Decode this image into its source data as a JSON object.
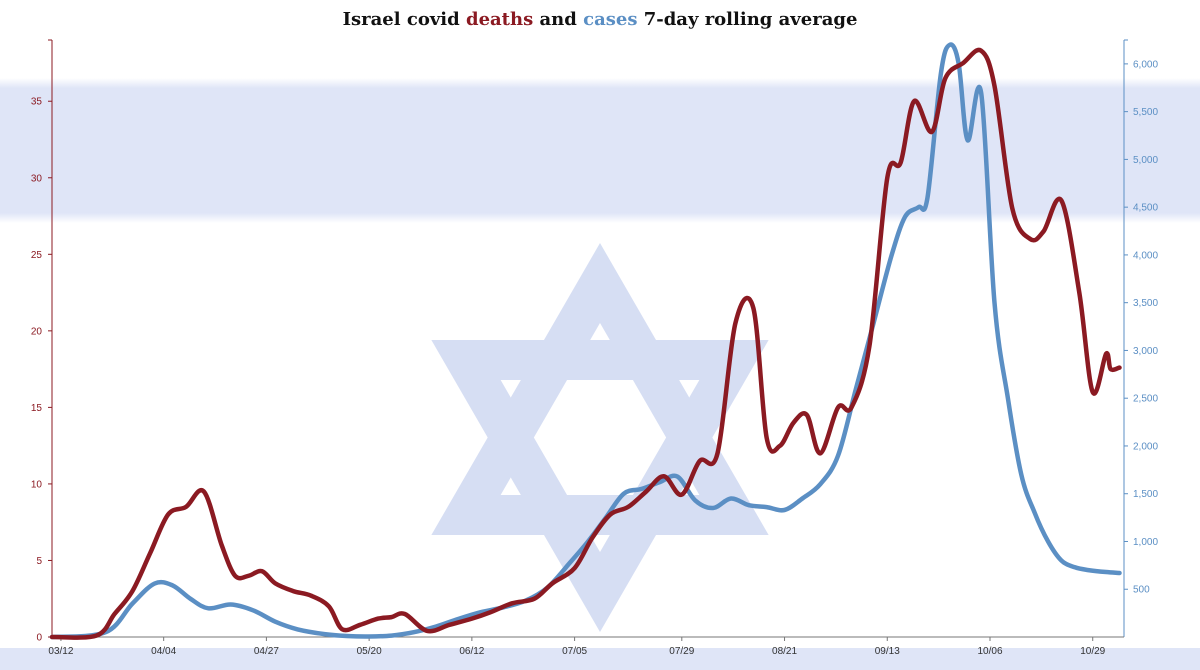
{
  "chart_data": {
    "type": "line",
    "title": {
      "prefix": "Israel covid ",
      "word1": "deaths",
      "middle": " and ",
      "word2": "cases",
      "suffix": " 7-day rolling average"
    },
    "colors": {
      "deaths": "#8b1a22",
      "cases": "#5b8fc4",
      "title": "#111111",
      "flag": "#dfe5f7",
      "star": "#c9d3ef"
    },
    "x_tick_labels": [
      "03/12",
      "04/04",
      "04/27",
      "05/20",
      "06/12",
      "07/05",
      "07/29",
      "08/21",
      "09/13",
      "10/06",
      "10/29"
    ],
    "x_range": [
      "03/10",
      "11/05"
    ],
    "y_left": {
      "range": [
        0,
        39
      ],
      "tick_values": [
        0,
        5,
        10,
        15,
        20,
        25,
        30,
        35
      ],
      "tick_labels": [
        "0",
        "5",
        "10",
        "15",
        "20",
        "25",
        "30",
        "35"
      ]
    },
    "y_right": {
      "range": [
        0,
        6250
      ],
      "tick_values": [
        500,
        1000,
        1500,
        2000,
        2500,
        3000,
        3500,
        4000,
        4500,
        5000,
        5500,
        6000
      ],
      "tick_labels": [
        "500",
        "1,000",
        "1,500",
        "2,000",
        "2,500",
        "3,000",
        "3,500",
        "4,000",
        "4,500",
        "5,000",
        "5,500",
        "6,000"
      ]
    },
    "grid": false,
    "series": [
      {
        "key": "deaths",
        "axis": "left",
        "x": [
          "03/10",
          "03/20",
          "03/24",
          "03/28",
          "04/01",
          "04/05",
          "04/09",
          "04/13",
          "04/17",
          "04/20",
          "04/23",
          "04/26",
          "04/29",
          "05/03",
          "05/07",
          "05/11",
          "05/14",
          "05/18",
          "05/22",
          "05/25",
          "05/28",
          "06/02",
          "06/07",
          "06/12",
          "06/16",
          "06/21",
          "06/26",
          "06/30",
          "07/05",
          "07/09",
          "07/13",
          "07/17",
          "07/21",
          "07/25",
          "07/29",
          "08/02",
          "08/06",
          "08/10",
          "08/14",
          "08/17",
          "08/20",
          "08/23",
          "08/26",
          "08/29",
          "09/02",
          "09/05",
          "09/09",
          "09/13",
          "09/16",
          "09/19",
          "09/23",
          "09/26",
          "09/30",
          "10/04",
          "10/07",
          "10/11",
          "10/15",
          "10/18",
          "10/22",
          "10/26",
          "10/29",
          "11/01",
          "11/02",
          "11/04"
        ],
        "values": [
          0,
          0.1,
          1.5,
          3,
          5.5,
          8,
          8.5,
          9.5,
          6,
          4,
          4,
          4.3,
          3.5,
          3,
          2.7,
          2,
          0.5,
          0.8,
          1.2,
          1.3,
          1.5,
          0.4,
          0.8,
          1.2,
          1.6,
          2.2,
          2.5,
          3.5,
          4.5,
          6.5,
          8,
          8.5,
          9.5,
          10.5,
          9.3,
          11.5,
          12,
          20.5,
          21.5,
          13,
          12.5,
          14,
          14.5,
          12,
          15,
          15,
          19,
          30,
          31,
          35,
          33,
          36.5,
          37.5,
          38.3,
          36,
          28,
          26,
          26.5,
          28.5,
          22.5,
          16,
          18.5,
          17.5,
          17.6
        ]
      },
      {
        "key": "cases",
        "axis": "right",
        "x": [
          "03/10",
          "03/22",
          "03/28",
          "04/02",
          "04/06",
          "04/10",
          "04/14",
          "04/19",
          "04/24",
          "04/29",
          "05/04",
          "05/10",
          "05/15",
          "05/20",
          "05/25",
          "05/30",
          "06/04",
          "06/09",
          "06/14",
          "06/19",
          "06/24",
          "06/29",
          "07/04",
          "07/08",
          "07/12",
          "07/16",
          "07/20",
          "07/24",
          "07/28",
          "08/01",
          "08/05",
          "08/09",
          "08/13",
          "08/17",
          "08/21",
          "08/25",
          "08/29",
          "09/02",
          "09/06",
          "09/10",
          "09/14",
          "09/17",
          "09/20",
          "09/22",
          "09/25",
          "09/27",
          "09/29",
          "10/01",
          "10/04",
          "10/07",
          "10/10",
          "10/13",
          "10/16",
          "10/19",
          "10/22",
          "10/25",
          "10/28",
          "11/01",
          "11/04"
        ],
        "values": [
          0,
          50,
          350,
          560,
          540,
          400,
          300,
          340,
          280,
          160,
          80,
          30,
          10,
          5,
          15,
          50,
          110,
          190,
          260,
          310,
          380,
          520,
          780,
          1000,
          1250,
          1500,
          1550,
          1620,
          1680,
          1430,
          1350,
          1450,
          1380,
          1360,
          1330,
          1450,
          1600,
          1900,
          2600,
          3300,
          4000,
          4400,
          4500,
          4600,
          5900,
          6200,
          6000,
          5200,
          5700,
          3500,
          2500,
          1700,
          1300,
          1000,
          800,
          730,
          700,
          680,
          670
        ]
      }
    ]
  }
}
